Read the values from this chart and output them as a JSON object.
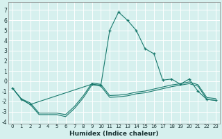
{
  "title": "",
  "xlabel": "Humidex (Indice chaleur)",
  "background_color": "#d6f0ee",
  "grid_color": "#ffffff",
  "line_color": "#1a7a6e",
  "xlim": [
    -0.5,
    23.5
  ],
  "ylim": [
    -4.2,
    7.8
  ],
  "yticks": [
    -4,
    -3,
    -2,
    -1,
    0,
    1,
    2,
    3,
    4,
    5,
    6,
    7
  ],
  "xticks": [
    0,
    1,
    2,
    3,
    4,
    5,
    6,
    7,
    8,
    9,
    10,
    11,
    12,
    13,
    14,
    15,
    16,
    17,
    18,
    19,
    20,
    21,
    22,
    23
  ],
  "line1_x": [
    0,
    1,
    2,
    3,
    4,
    5,
    6,
    7,
    8,
    9,
    10,
    11,
    12,
    13,
    14,
    15,
    16,
    17,
    18,
    19,
    20,
    21,
    22,
    23
  ],
  "line1_y": [
    -0.7,
    -1.8,
    -2.3,
    -3.3,
    -3.3,
    -3.3,
    -3.5,
    -2.7,
    -1.65,
    -0.35,
    -0.5,
    -1.6,
    -1.55,
    -1.45,
    -1.25,
    -1.15,
    -0.95,
    -0.75,
    -0.55,
    -0.4,
    -0.25,
    -0.5,
    -1.8,
    -1.9
  ],
  "line2_x": [
    0,
    1,
    2,
    3,
    4,
    5,
    6,
    7,
    8,
    9,
    10,
    11,
    12,
    13,
    14,
    15,
    16,
    17,
    18,
    19,
    20,
    21,
    22,
    23
  ],
  "line2_y": [
    -0.7,
    -1.75,
    -2.15,
    -3.15,
    -3.15,
    -3.15,
    -3.3,
    -2.5,
    -1.45,
    -0.18,
    -0.32,
    -1.42,
    -1.38,
    -1.28,
    -1.08,
    -0.98,
    -0.78,
    -0.58,
    -0.38,
    -0.26,
    -0.08,
    -0.36,
    -1.62,
    -1.72
  ],
  "main_x": [
    0,
    1,
    2,
    9,
    10,
    11,
    12,
    13,
    14,
    15,
    16,
    17,
    18,
    19,
    20,
    21,
    22,
    23
  ],
  "main_y": [
    -0.7,
    -1.8,
    -2.3,
    -0.3,
    -0.4,
    5.0,
    6.8,
    6.0,
    5.0,
    3.2,
    2.7,
    0.1,
    0.2,
    -0.3,
    0.2,
    -1.0,
    -1.8,
    -1.9
  ]
}
